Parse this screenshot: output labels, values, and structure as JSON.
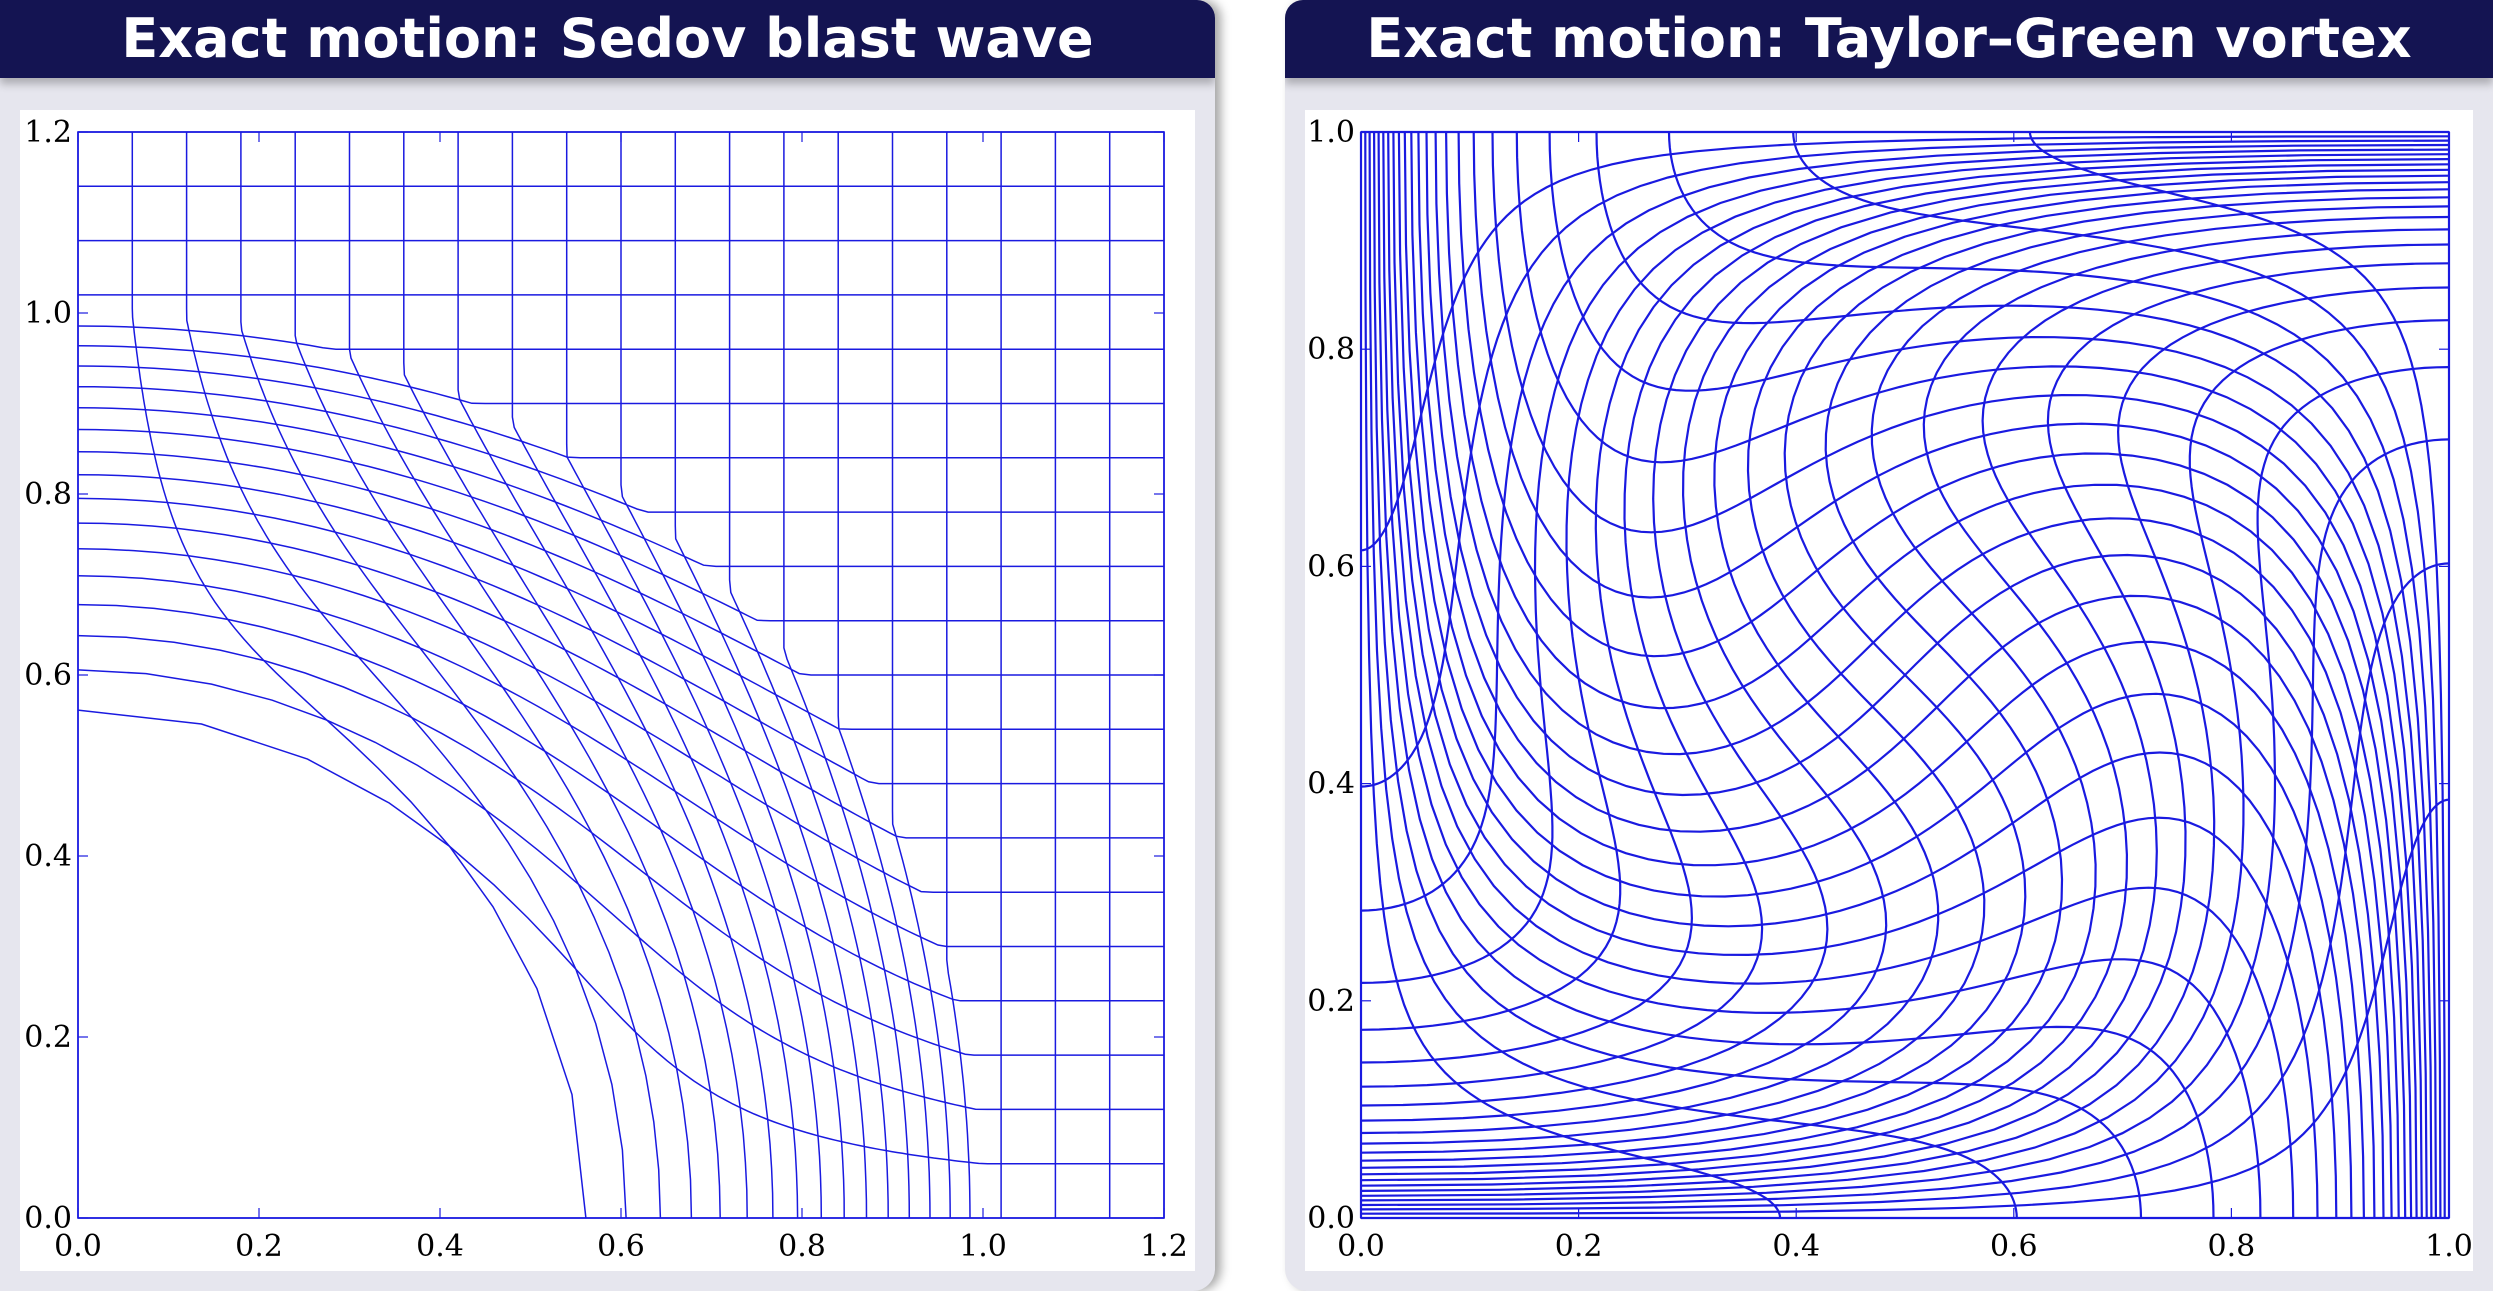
{
  "panels": {
    "left": {
      "title": "Exact motion: Sedov blast wave"
    },
    "right": {
      "title": "Exact motion: Taylor–Green vortex"
    }
  },
  "colors": {
    "mesh": "#1a1ae0",
    "header": "#141452",
    "panel_bg": "#e6e6ee"
  },
  "chart_data": [
    {
      "type": "line",
      "title": "Exact motion: Sedov blast wave",
      "description_kind": "deformed mesh (radially compressed quadrilateral grid)",
      "xlim": [
        0,
        1.2
      ],
      "ylim": [
        0,
        1.2
      ],
      "x_ticks": [
        "0.0",
        "0.2",
        "0.4",
        "0.6",
        "0.8",
        "1.0",
        "1.2"
      ],
      "y_ticks": [
        "0.0",
        "0.2",
        "0.4",
        "0.6",
        "0.8",
        "1.0",
        "1.2"
      ],
      "grid_cells": 20,
      "shock_radius": 1.0,
      "inner_radius": 0.49,
      "grid": false,
      "legend": "none"
    },
    {
      "type": "line",
      "title": "Exact motion: Taylor–Green vortex",
      "description_kind": "deformed mesh (vortex-distorted quadrilateral grid)",
      "xlim": [
        0,
        1.0
      ],
      "ylim": [
        0,
        1.0
      ],
      "x_ticks": [
        "0.0",
        "0.2",
        "0.4",
        "0.6",
        "0.8",
        "1.0"
      ],
      "y_ticks": [
        "0.0",
        "0.2",
        "0.4",
        "0.6",
        "0.8",
        "1.0"
      ],
      "grid_lines": 24,
      "grid": false,
      "legend": "none"
    }
  ]
}
